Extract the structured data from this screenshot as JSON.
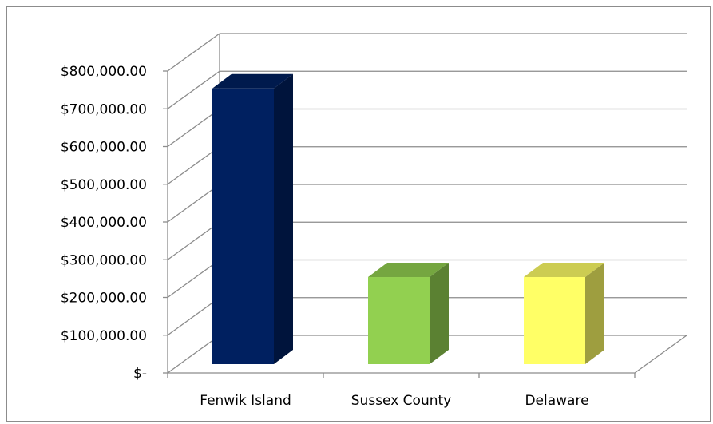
{
  "chart_data": {
    "type": "bar",
    "style": "3d-clustered-column",
    "categories": [
      "Fenwik Island",
      "Sussex County",
      "Delaware"
    ],
    "values": [
      737000,
      237000,
      237000
    ],
    "colors": {
      "Fenwik Island": "#002060",
      "Sussex County": "#92D050",
      "Delaware": "#FFFF66"
    },
    "ylim": [
      0,
      800000
    ],
    "y_tick_labels": [
      "$-",
      "$100,000.00",
      "$200,000.00",
      "$300,000.00",
      "$400,000.00",
      "$500,000.00",
      "$600,000.00",
      "$700,000.00",
      "$800,000.00"
    ],
    "grid": true,
    "legend": "none",
    "title": "",
    "xlabel": "",
    "ylabel": ""
  }
}
